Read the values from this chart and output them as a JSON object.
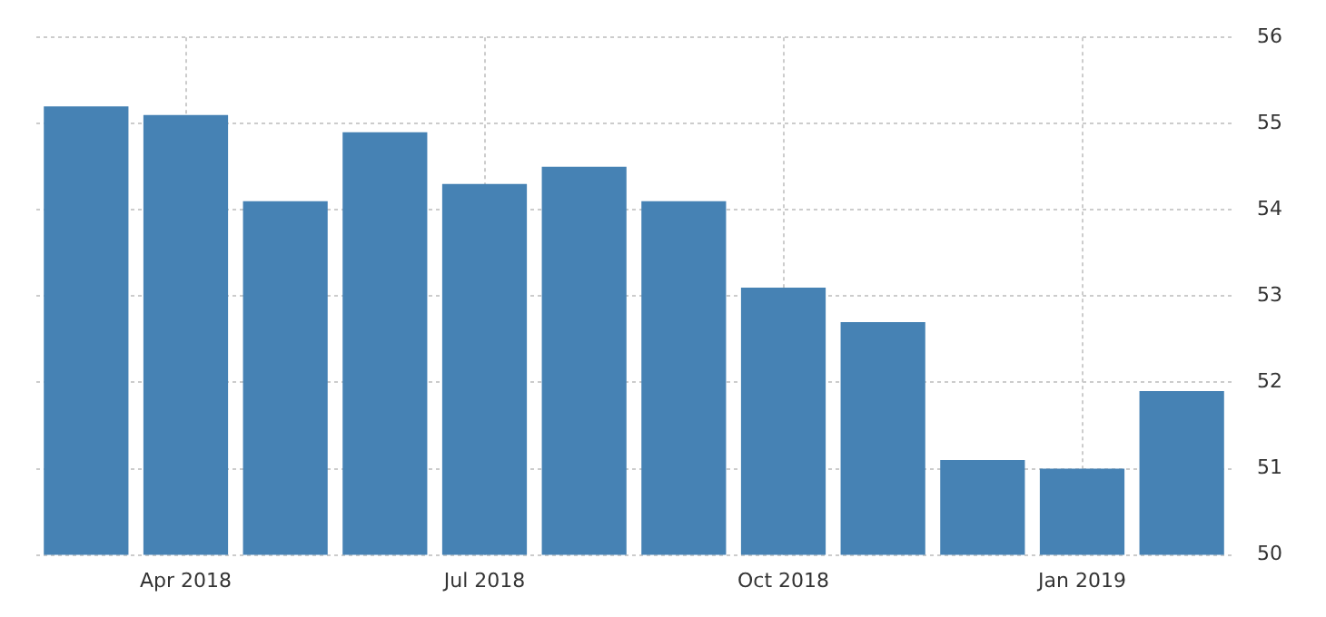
{
  "chart_data": {
    "type": "bar",
    "categories": [
      null,
      "Apr 2018",
      null,
      null,
      "Jul 2018",
      null,
      null,
      "Oct 2018",
      null,
      null,
      "Jan 2019",
      null
    ],
    "values": [
      55.2,
      55.1,
      54.1,
      54.9,
      54.3,
      54.5,
      54.1,
      53.1,
      52.7,
      51.1,
      51.0,
      51.9
    ],
    "color": "#4682b4",
    "ylim": [
      50,
      56
    ],
    "yticks": [
      50,
      51,
      52,
      53,
      54,
      55,
      56
    ],
    "grid": true
  }
}
